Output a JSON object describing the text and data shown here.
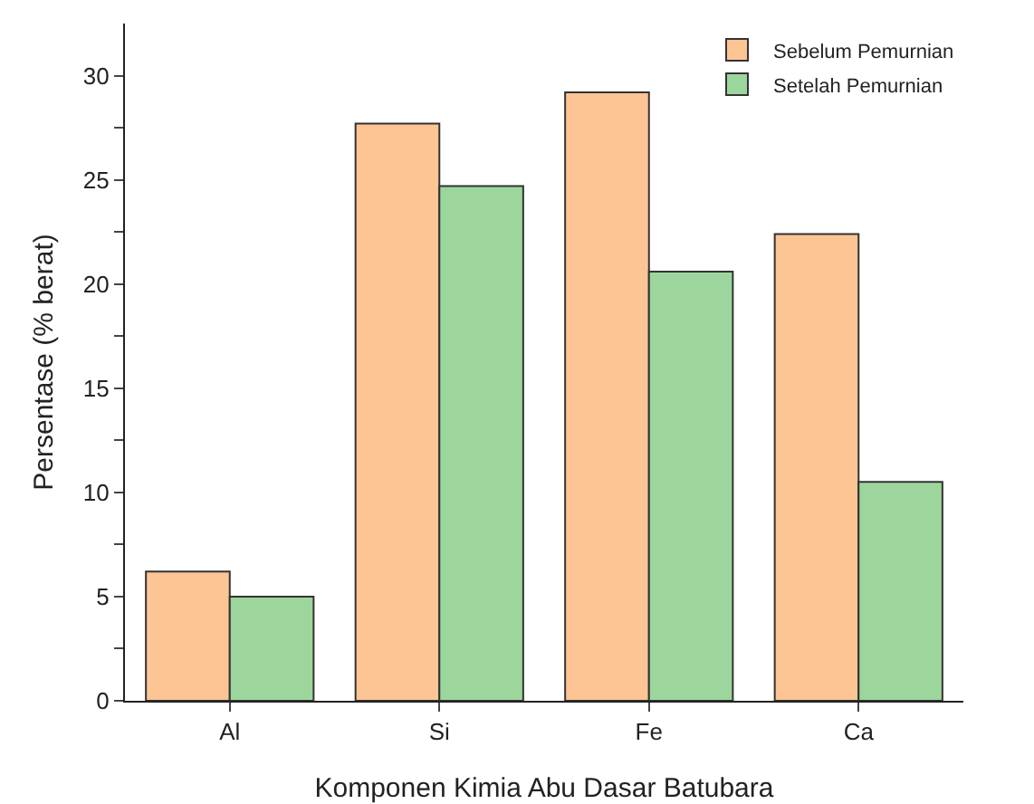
{
  "chart_data": {
    "type": "bar",
    "xlabel": "Komponen Kimia Abu Dasar Batubara",
    "ylabel": "Persentase (% berat)",
    "categories": [
      "Al",
      "Si",
      "Fe",
      "Ca"
    ],
    "series": [
      {
        "name": "Sebelum Pemurnian",
        "color": "#fdc494",
        "values": [
          6.2,
          27.7,
          29.2,
          22.4
        ]
      },
      {
        "name": "Setelah Pemurnian",
        "color": "#9cd69c",
        "values": [
          5.0,
          24.7,
          20.6,
          10.5
        ]
      }
    ],
    "ylim": [
      0,
      32.5
    ],
    "yticks": [
      0,
      {
        "value": 2.5,
        "label": null
      },
      5,
      {
        "value": 7.5,
        "label": null
      },
      10,
      {
        "value": 12.5,
        "label": null
      },
      15,
      {
        "value": 17.5,
        "label": null
      },
      20,
      {
        "value": 22.5,
        "label": null
      },
      25,
      {
        "value": 27.5,
        "label": null
      },
      30
    ],
    "grid": false,
    "legend": "top right"
  }
}
